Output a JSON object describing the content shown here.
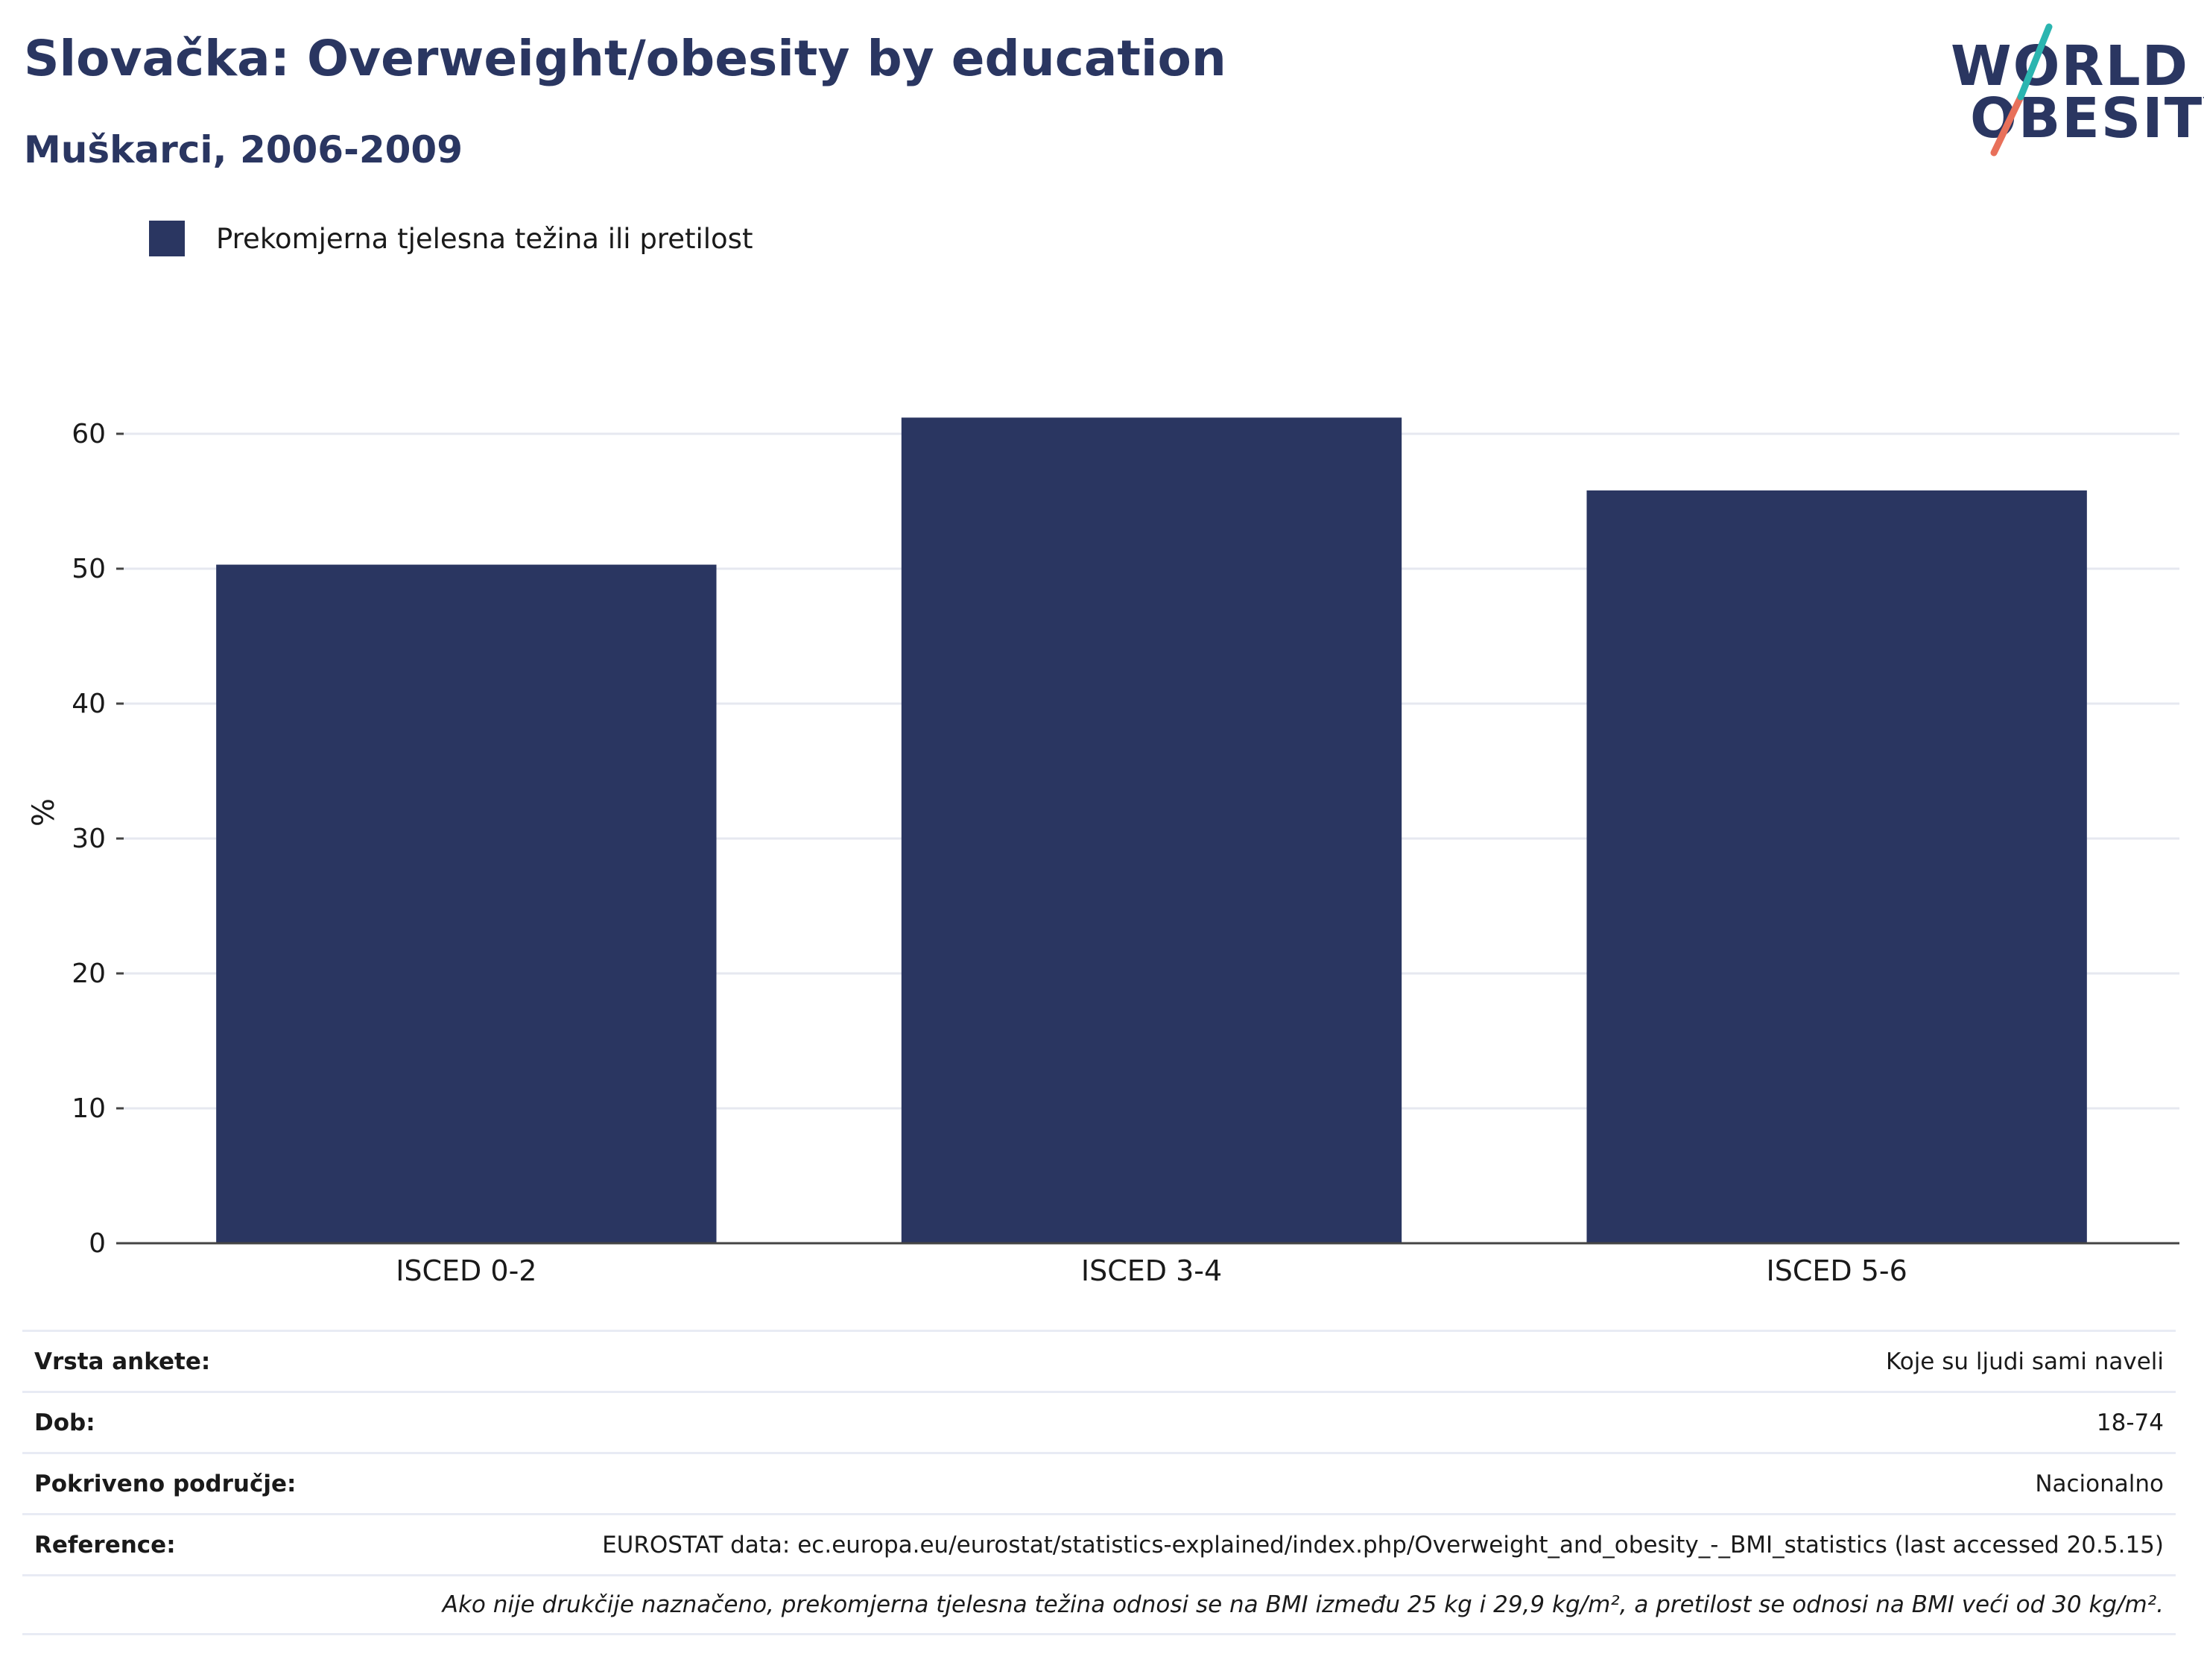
{
  "header": {
    "title": "Slovačka: Overweight/obesity by education",
    "subtitle": "Muškarci, 2006-2009"
  },
  "logo": {
    "line1": "WORLD",
    "line2": "OBESITY"
  },
  "colors": {
    "bar": "#2a3661",
    "text": "#2a3661",
    "grid": "#e6e8f0",
    "logo_teal": "#2bb5b0",
    "logo_coral": "#e8705a"
  },
  "chart_data": {
    "type": "bar",
    "categories": [
      "ISCED 0-2",
      "ISCED 3-4",
      "ISCED 5-6"
    ],
    "series": [
      {
        "name": "Prekomjerna tjelesna težina ili pretilost",
        "values": [
          50.3,
          61.2,
          55.8
        ]
      }
    ],
    "ylabel": "%",
    "xlabel": "",
    "ylim": [
      0,
      65
    ],
    "yticks": [
      0,
      10,
      20,
      30,
      40,
      50,
      60
    ],
    "grid": true,
    "legend": "top-left"
  },
  "info": {
    "rows": [
      {
        "key": "Vrsta ankete:",
        "value": "Koje su ljudi sami naveli"
      },
      {
        "key": "Dob:",
        "value": "18-74"
      },
      {
        "key": "Pokriveno područje:",
        "value": "Nacionalno"
      },
      {
        "key": "Reference:",
        "value": "EUROSTAT data: ec.europa.eu/eurostat/statistics-explained/index.php/Overweight_and_obesity_-_BMI_statistics (last accessed 20.5.15)"
      }
    ],
    "note": "Ako nije drukčije naznačeno, prekomjerna tjelesna težina odnosi se na BMI između 25 kg i 29,9 kg/m², a pretilost se odnosi na BMI veći od 30 kg/m²."
  }
}
